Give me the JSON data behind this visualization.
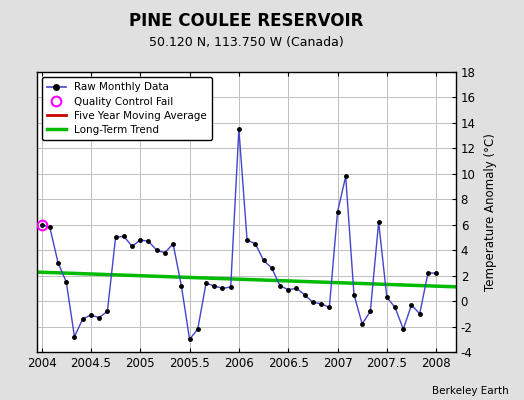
{
  "title": "PINE COULEE RESERVOIR",
  "subtitle": "50.120 N, 113.750 W (Canada)",
  "attribution": "Berkeley Earth",
  "ylabel_right": "Temperature Anomaly (°C)",
  "ylim": [
    -4,
    18
  ],
  "yticks": [
    -4,
    -2,
    0,
    2,
    4,
    6,
    8,
    10,
    12,
    14,
    16,
    18
  ],
  "xlim": [
    2003.95,
    2008.2
  ],
  "xticks": [
    2004,
    2004.5,
    2005,
    2005.5,
    2006,
    2006.5,
    2007,
    2007.5,
    2008
  ],
  "xticklabels": [
    "2004",
    "2004.5",
    "2005",
    "2005.5",
    "2006",
    "2006.5",
    "2007",
    "2007.5",
    "2008"
  ],
  "background_color": "#e0e0e0",
  "plot_bg_color": "#ffffff",
  "grid_color": "#c0c0c0",
  "raw_x": [
    2004.0,
    2004.083,
    2004.167,
    2004.25,
    2004.333,
    2004.417,
    2004.5,
    2004.583,
    2004.667,
    2004.75,
    2004.833,
    2004.917,
    2005.0,
    2005.083,
    2005.167,
    2005.25,
    2005.333,
    2005.417,
    2005.5,
    2005.583,
    2005.667,
    2005.75,
    2005.833,
    2005.917,
    2006.0,
    2006.083,
    2006.167,
    2006.25,
    2006.333,
    2006.417,
    2006.5,
    2006.583,
    2006.667,
    2006.75,
    2006.833,
    2006.917,
    2007.0,
    2007.083,
    2007.167,
    2007.25,
    2007.333,
    2007.417,
    2007.5,
    2007.583,
    2007.667,
    2007.75,
    2007.833,
    2007.917,
    2008.0
  ],
  "raw_y": [
    6.0,
    5.8,
    3.0,
    1.5,
    -2.8,
    -1.4,
    -1.1,
    -1.3,
    -0.8,
    5.0,
    5.1,
    4.3,
    4.8,
    4.7,
    4.0,
    3.8,
    4.5,
    1.2,
    -3.0,
    -2.2,
    1.4,
    1.2,
    1.0,
    1.1,
    13.5,
    4.8,
    4.5,
    3.2,
    2.6,
    1.2,
    0.9,
    1.0,
    0.5,
    -0.1,
    -0.2,
    -0.5,
    7.0,
    9.8,
    0.5,
    -1.8,
    -0.8,
    6.2,
    0.3,
    -0.5,
    -2.2,
    -0.3,
    -1.0,
    2.2,
    2.2
  ],
  "qc_fail_x": [
    2004.0
  ],
  "qc_fail_y": [
    6.0
  ],
  "trend_x": [
    2003.95,
    2008.2
  ],
  "trend_y": [
    2.28,
    1.12
  ],
  "raw_line_color": "#4444cc",
  "raw_marker_color": "#000000",
  "qc_color": "#ff00ff",
  "trend_color": "#00bb00",
  "mavg_color": "#cc0000",
  "legend_labels": [
    "Raw Monthly Data",
    "Quality Control Fail",
    "Five Year Moving Average",
    "Long-Term Trend"
  ]
}
